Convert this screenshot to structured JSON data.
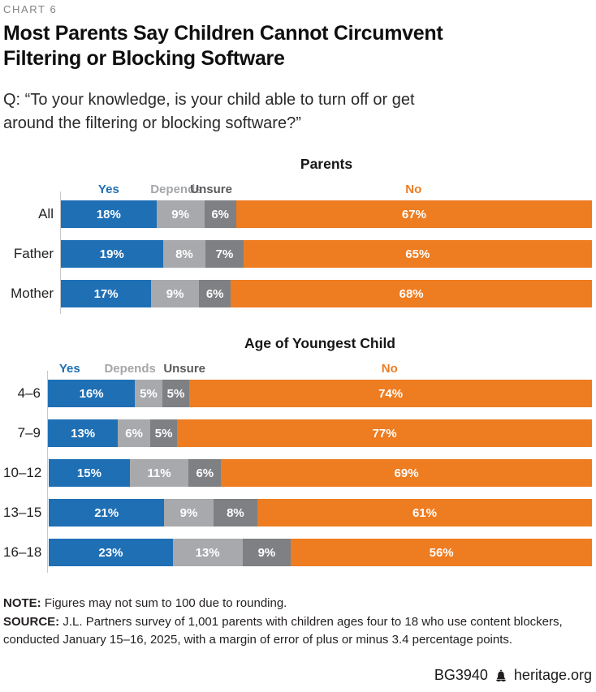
{
  "page": {
    "kicker": "CHART 6",
    "title": "Most Parents Say Children Cannot Circumvent Filtering or Blocking Software",
    "question": "Q: “To your knowledge, is your child able to turn off or get around the filtering or blocking software?”",
    "note_label": "NOTE:",
    "note_text": "Figures may not sum to 100 due to rounding.",
    "source_label": "SOURCE:",
    "source_text": "J.L. Partners survey of 1,001 parents with children ages four to 18 who use content blockers, conducted January 15–16, 2025, with a margin of error of plus or minus 3.4 percentage points.",
    "report_id": "BG3940",
    "site": "heritage.org"
  },
  "colors": {
    "series_fill": [
      "#1f6fb5",
      "#a7a9ac",
      "#7e8083",
      "#ee7c21"
    ],
    "legend_text": [
      "#1f6fb5",
      "#a4a6a9",
      "#595a5c",
      "#ee7c21"
    ],
    "axis": "#c8c9ca"
  },
  "chart_data": [
    {
      "type": "bar",
      "orientation": "horizontal-stacked",
      "title": "Parents",
      "unit": "%",
      "xlim": [
        0,
        100
      ],
      "legend": [
        "Yes",
        "Depends",
        "Unsure",
        "No"
      ],
      "legend_positions_pct": [
        9.0,
        21.7,
        28.3,
        66.4
      ],
      "categories": [
        "All",
        "Father",
        "Mother"
      ],
      "series": [
        {
          "name": "Yes",
          "values": [
            18,
            19,
            17
          ]
        },
        {
          "name": "Depends",
          "values": [
            9,
            8,
            9
          ]
        },
        {
          "name": "Unsure",
          "values": [
            6,
            7,
            6
          ]
        },
        {
          "name": "No",
          "values": [
            67,
            65,
            68
          ]
        }
      ]
    },
    {
      "type": "bar",
      "orientation": "horizontal-stacked",
      "title": "Age of Youngest Child",
      "unit": "%",
      "xlim": [
        0,
        100
      ],
      "legend": [
        "Yes",
        "Depends",
        "Unsure",
        "No"
      ],
      "legend_positions_pct": [
        4.0,
        15.1,
        25.1,
        62.8
      ],
      "categories": [
        "4–6",
        "7–9",
        "10–12",
        "13–15",
        "16–18"
      ],
      "series": [
        {
          "name": "Yes",
          "values": [
            16,
            13,
            15,
            21,
            23
          ]
        },
        {
          "name": "Depends",
          "values": [
            5,
            6,
            11,
            9,
            13
          ]
        },
        {
          "name": "Unsure",
          "values": [
            5,
            5,
            6,
            8,
            9
          ]
        },
        {
          "name": "No",
          "values": [
            74,
            77,
            69,
            61,
            56
          ]
        }
      ]
    }
  ]
}
